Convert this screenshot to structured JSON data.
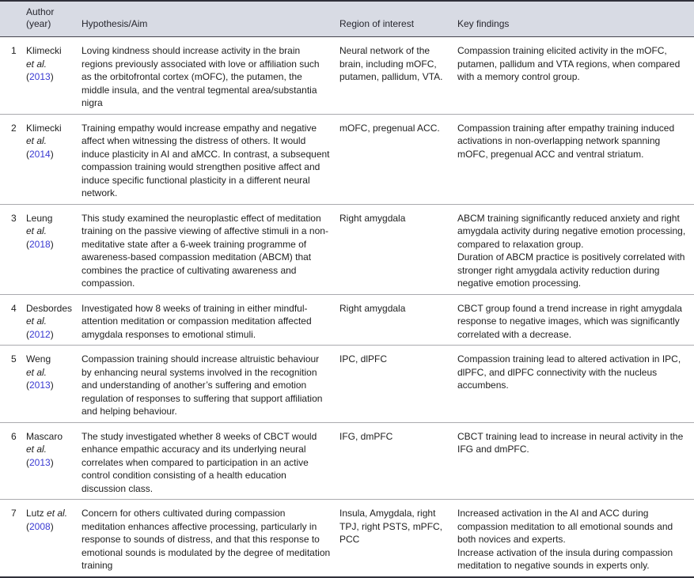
{
  "accent_colors": {
    "link_blue": "#3a3ad2",
    "header_bg": "#d8dbe4"
  },
  "table": {
    "header": {
      "index": "",
      "author_line1": "Author",
      "author_line2": "(year)",
      "hypothesis": "Hypothesis/Aim",
      "region": "Region of interest",
      "findings": "Key findings"
    },
    "rows": [
      {
        "index": "1",
        "author": {
          "name": "Klimecki",
          "etal": "et al.",
          "etal_inline": false,
          "year": "2013"
        },
        "hypothesis": "Loving kindness should increase activity in the brain regions previously associated with love or affiliation such as the orbitofrontal cortex (mOFC), the putamen, the middle insula, and the ventral tegmental area/substantia nigra",
        "region": "Neural network of the brain, including mOFC, putamen, pallidum, VTA.",
        "findings": [
          "Compassion training elicited activity in the mOFC, putamen, pallidum and VTA regions, when compared with a memory control group."
        ]
      },
      {
        "index": "2",
        "author": {
          "name": "Klimecki",
          "etal": "et al.",
          "etal_inline": false,
          "year": "2014"
        },
        "hypothesis": "Training empathy would increase empathy and negative affect when witnessing the distress of others. It would induce plasticity in AI and aMCC. In contrast, a subsequent compassion training would strengthen positive affect and induce specific functional plasticity in a different neural network.",
        "region": "mOFC, pregenual ACC.",
        "findings": [
          "Compassion training after empathy training induced activations in non-overlapping network spanning mOFC, pregenual ACC and ventral striatum."
        ]
      },
      {
        "index": "3",
        "author": {
          "name": "Leung",
          "etal": "et al.",
          "etal_inline": false,
          "year": "2018"
        },
        "hypothesis": "This study examined the neuroplastic effect of meditation training on the passive viewing of affective stimuli in a non-meditative state after a 6-week training programme of awareness-based compassion meditation (ABCM) that combines the practice of cultivating awareness and compassion.",
        "region": "Right amygdala",
        "findings": [
          "ABCM training significantly reduced anxiety and right amygdala activity during negative emotion processing, compared to relaxation group.",
          "Duration of ABCM practice is positively correlated with stronger right amygdala activity reduction during negative emotion processing."
        ]
      },
      {
        "index": "4",
        "author": {
          "name": "Desbordes",
          "etal": "et al.",
          "etal_inline": false,
          "year": "2012"
        },
        "hypothesis": "Investigated how 8 weeks of training in either mindful-attention meditation or compassion meditation affected amygdala responses to emotional stimuli.",
        "region": "Right amygdala",
        "findings": [
          "CBCT group found a trend increase in right amygdala response to negative images, which was significantly correlated with a decrease."
        ]
      },
      {
        "index": "5",
        "author": {
          "name": "Weng",
          "etal": "et al.",
          "etal_inline": false,
          "year": "2013"
        },
        "hypothesis": "Compassion training should increase altruistic behaviour by enhancing neural systems involved in the recognition and understanding of another’s suffering and emotion regulation of responses to suffering that support affiliation and helping behaviour.",
        "region": "IPC, dlPFC",
        "findings": [
          "Compassion training lead to altered activation in IPC, dlPFC, and dlPFC connectivity with the nucleus accumbens."
        ]
      },
      {
        "index": "6",
        "author": {
          "name": "Mascaro",
          "etal": "et al.",
          "etal_inline": false,
          "year": "2013"
        },
        "hypothesis": "The study investigated whether 8 weeks of CBCT would enhance empathic accuracy and its underlying neural correlates when compared to participation in an active control condition consisting of a health education discussion class.",
        "region": "IFG, dmPFC",
        "findings": [
          "CBCT training lead to increase in neural activity in the IFG and dmPFC."
        ]
      },
      {
        "index": "7",
        "author": {
          "name": "Lutz",
          "etal": "et al.",
          "etal_inline": true,
          "year": "2008"
        },
        "hypothesis": "Concern for others cultivated during compassion meditation enhances affective processing, particularly in response to sounds of distress, and that this response to emotional sounds is modulated by the degree of meditation training",
        "region": "Insula, Amygdala, right TPJ, right PSTS, mPFC, PCC",
        "findings": [
          "Increased activation in the AI and ACC during compassion meditation to all emotional sounds and both novices and experts.",
          "Increase activation of the insula during compassion meditation to negative sounds in experts only."
        ]
      }
    ]
  }
}
